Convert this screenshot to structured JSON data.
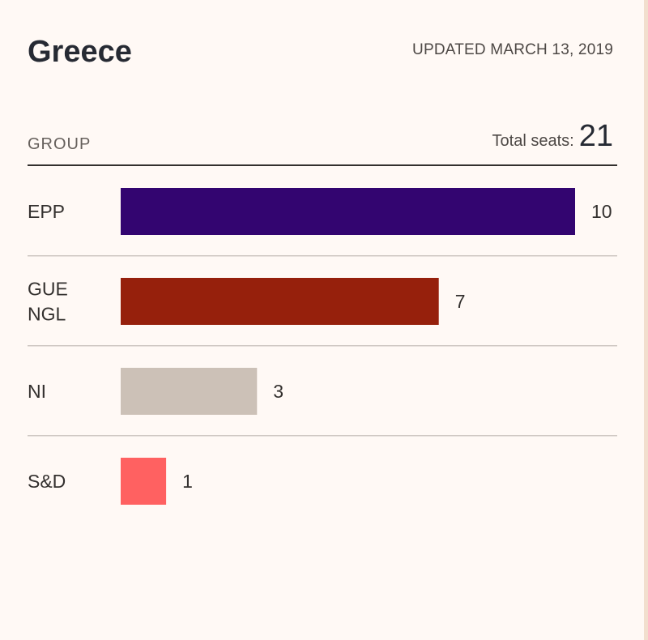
{
  "header": {
    "title": "Greece",
    "updated": "UPDATED MARCH 13, 2019"
  },
  "table": {
    "group_label": "GROUP",
    "total_label": "Total seats:",
    "total_value": "21"
  },
  "chart_data": {
    "type": "bar",
    "orientation": "horizontal",
    "categories": [
      [
        "EPP"
      ],
      [
        "GUE",
        "NGL"
      ],
      [
        "NI"
      ],
      [
        "S&D"
      ]
    ],
    "values": [
      10,
      7,
      3,
      1
    ],
    "colors": [
      "#330570",
      "#96200c",
      "#ccc1b7",
      "#ff6161"
    ],
    "xlim": [
      0,
      10
    ],
    "grid": false
  }
}
